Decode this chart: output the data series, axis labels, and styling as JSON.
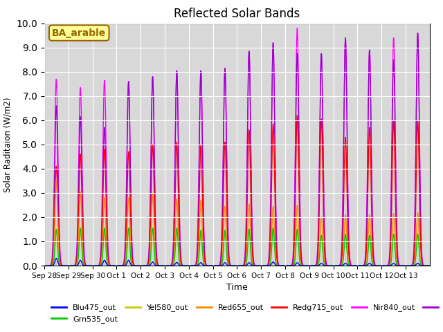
{
  "title": "Reflected Solar Bands",
  "xlabel": "Time",
  "ylabel": "Solar Raditaion (W/m2)",
  "annotation": "BA_arable",
  "ylim": [
    0,
    10.0
  ],
  "yticks": [
    0.0,
    1.0,
    2.0,
    3.0,
    4.0,
    5.0,
    6.0,
    7.0,
    8.0,
    9.0,
    10.0
  ],
  "series": {
    "Blu475_out": {
      "color": "#0000ff"
    },
    "Grn535_out": {
      "color": "#00cc00"
    },
    "Yel580_out": {
      "color": "#cccc00"
    },
    "Red655_out": {
      "color": "#ff8800"
    },
    "Redg715_out": {
      "color": "#ff0000"
    },
    "Nir840_out": {
      "color": "#ff00ff"
    },
    "Nir945_out": {
      "color": "#9900cc"
    }
  },
  "bg_color": "#d8d8d8",
  "annotation_bg": "#ffff99",
  "annotation_border": "#996600",
  "n_days": 16,
  "xtick_labels": [
    "Sep 28",
    "Sep 29",
    "Sep 30",
    "Oct 1",
    "Oct 2",
    "Oct 3",
    "Oct 4",
    "Oct 5",
    "Oct 6",
    "Oct 7",
    "Oct 8",
    "Oct 9",
    "Oct 10",
    "Oct 11",
    "Oct 12",
    "Oct 13"
  ],
  "day_peaks_nir840": [
    7.7,
    7.35,
    7.65,
    7.6,
    7.8,
    8.05,
    8.05,
    8.15,
    8.85,
    9.2,
    9.8,
    8.75,
    9.4,
    8.9,
    9.4,
    9.6
  ],
  "day_peaks_nir945": [
    6.6,
    6.15,
    5.7,
    7.6,
    7.8,
    8.05,
    8.05,
    8.15,
    8.85,
    9.2,
    8.75,
    8.75,
    9.4,
    8.9,
    8.5,
    9.6
  ],
  "day_peaks_redg715": [
    4.1,
    4.6,
    4.8,
    4.7,
    5.0,
    5.1,
    4.95,
    5.1,
    5.6,
    5.85,
    6.2,
    6.05,
    5.3,
    5.7,
    6.0,
    6.0
  ],
  "day_peaks_red655": [
    3.5,
    3.05,
    2.8,
    2.8,
    2.95,
    2.75,
    2.7,
    2.45,
    2.55,
    2.45,
    2.5,
    2.0,
    2.1,
    2.1,
    2.15,
    2.2
  ],
  "day_peaks_yel580": [
    1.5,
    1.55,
    1.55,
    1.55,
    1.55,
    1.55,
    1.45,
    1.45,
    1.5,
    1.55,
    1.5,
    1.25,
    1.3,
    1.25,
    1.3,
    1.3
  ],
  "day_peaks_grn535": [
    1.5,
    1.55,
    1.55,
    1.55,
    1.55,
    1.55,
    1.45,
    1.45,
    1.5,
    1.55,
    1.5,
    1.25,
    1.3,
    1.25,
    1.3,
    1.3
  ],
  "day_peaks_blu475": [
    0.3,
    0.22,
    0.22,
    0.22,
    0.15,
    0.13,
    0.12,
    0.12,
    0.12,
    0.15,
    0.12,
    0.1,
    0.1,
    0.1,
    0.1,
    0.1
  ]
}
